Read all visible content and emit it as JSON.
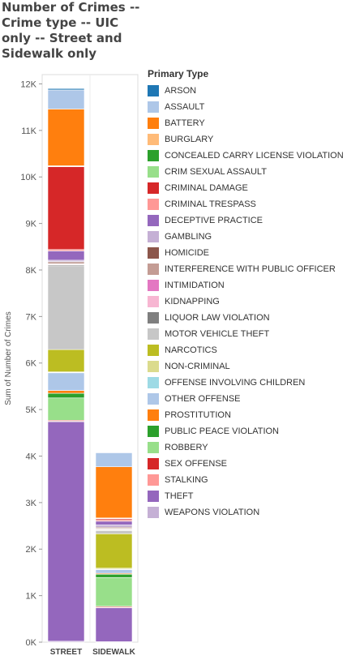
{
  "chart_data": {
    "type": "bar",
    "stacked": true,
    "title": "Number of Crimes -- Crime type -- UIC only -- Street and Sidewalk only",
    "xlabel": "",
    "ylabel": "Sum of Number of Crimes",
    "ylim": [
      0,
      12200
    ],
    "yticks": [
      0,
      1000,
      2000,
      3000,
      4000,
      5000,
      6000,
      7000,
      8000,
      9000,
      10000,
      11000,
      12000
    ],
    "ytick_labels": [
      "0K",
      "1K",
      "2K",
      "3K",
      "4K",
      "5K",
      "6K",
      "7K",
      "8K",
      "9K",
      "10K",
      "11K",
      "12K"
    ],
    "categories": [
      "STREET",
      "SIDEWALK"
    ],
    "legend_title": "Primary Type",
    "legend_position": "right",
    "grid": false,
    "series": [
      {
        "name": "WEAPONS VIOLATION",
        "color": "#c5b0d5",
        "values": [
          20,
          10
        ]
      },
      {
        "name": "THEFT",
        "color": "#9467bd",
        "values": [
          4720,
          730
        ]
      },
      {
        "name": "STALKING",
        "color": "#ff9896",
        "values": [
          10,
          10
        ]
      },
      {
        "name": "SEX OFFENSE",
        "color": "#d62728",
        "values": [
          20,
          20
        ]
      },
      {
        "name": "ROBBERY",
        "color": "#98df8a",
        "values": [
          480,
          620
        ]
      },
      {
        "name": "PUBLIC PEACE VIOLATION",
        "color": "#2ca02c",
        "values": [
          100,
          70
        ]
      },
      {
        "name": "PROSTITUTION",
        "color": "#ff7f0e",
        "values": [
          60,
          20
        ]
      },
      {
        "name": "OTHER OFFENSE",
        "color": "#aec7e8",
        "values": [
          380,
          80
        ]
      },
      {
        "name": "OFFENSE INVOLVING CHILDREN",
        "color": "#9edae5",
        "values": [
          10,
          10
        ]
      },
      {
        "name": "NON-CRIMINAL",
        "color": "#dbdb8d",
        "values": [
          10,
          20
        ]
      },
      {
        "name": "NARCOTICS",
        "color": "#bcbd22",
        "values": [
          480,
          740
        ]
      },
      {
        "name": "MOTOR VEHICLE THEFT",
        "color": "#c7c7c7",
        "values": [
          1800,
          70
        ]
      },
      {
        "name": "LIQUOR LAW VIOLATION",
        "color": "#7f7f7f",
        "values": [
          20,
          10
        ]
      },
      {
        "name": "KIDNAPPING",
        "color": "#f7b6d2",
        "values": [
          10,
          10
        ]
      },
      {
        "name": "INTIMIDATION",
        "color": "#e377c2",
        "values": [
          10,
          10
        ]
      },
      {
        "name": "INTERFERENCE WITH PUBLIC OFFICER",
        "color": "#c49c94",
        "values": [
          30,
          20
        ]
      },
      {
        "name": "HOMICIDE",
        "color": "#8c564b",
        "values": [
          20,
          20
        ]
      },
      {
        "name": "GAMBLING",
        "color": "#c5b0d5",
        "values": [
          30,
          50
        ]
      },
      {
        "name": "DECEPTIVE PRACTICE",
        "color": "#9467bd",
        "values": [
          200,
          80
        ]
      },
      {
        "name": "CRIMINAL TRESPASS",
        "color": "#ff9896",
        "values": [
          30,
          20
        ]
      },
      {
        "name": "CRIMINAL DAMAGE",
        "color": "#d62728",
        "values": [
          1780,
          30
        ]
      },
      {
        "name": "CRIM SEXUAL ASSAULT",
        "color": "#98df8a",
        "values": [
          10,
          10
        ]
      },
      {
        "name": "CONCEALED CARRY LICENSE VIOLATION",
        "color": "#2ca02c",
        "values": [
          0,
          0
        ]
      },
      {
        "name": "BURGLARY",
        "color": "#ffbb78",
        "values": [
          10,
          10
        ]
      },
      {
        "name": "BATTERY",
        "color": "#ff7f0e",
        "values": [
          1220,
          1100
        ]
      },
      {
        "name": "ASSAULT",
        "color": "#aec7e8",
        "values": [
          410,
          300
        ]
      },
      {
        "name": "ARSON",
        "color": "#1f77b4",
        "values": [
          30,
          0
        ]
      }
    ]
  }
}
